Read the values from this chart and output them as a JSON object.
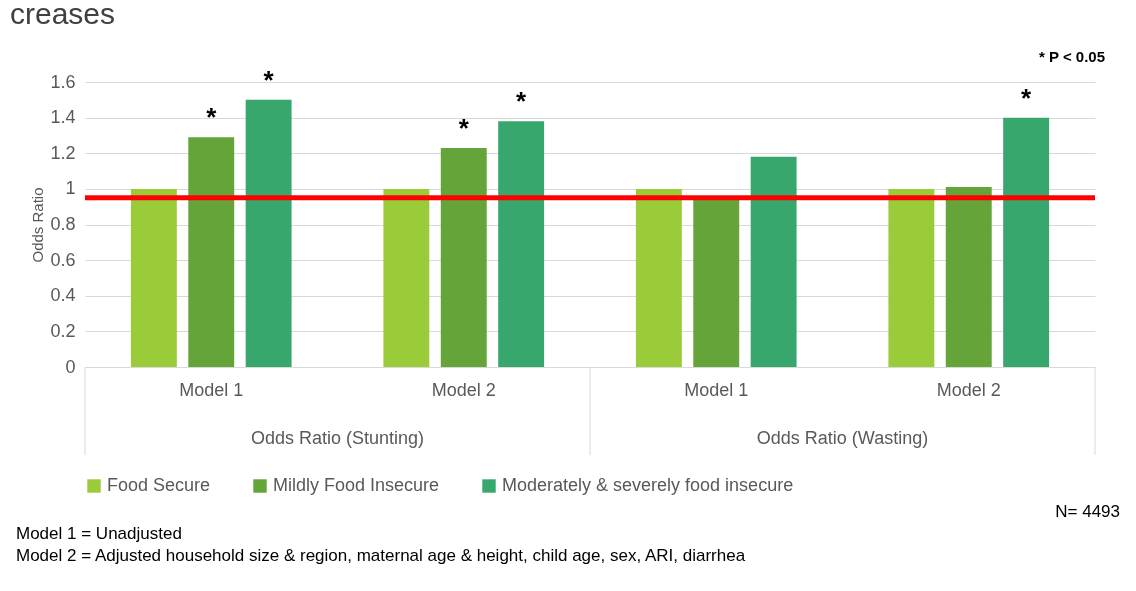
{
  "chart_data": {
    "type": "bar",
    "title": "creases",
    "ylabel": "Odds Ratio",
    "categories": [
      "Model 1",
      "Model 2",
      "Model 1",
      "Model 2"
    ],
    "series": [
      {
        "name": "Food Secure",
        "color": "#9acb39",
        "values": [
          1.0,
          1.0,
          1.0,
          1.0
        ],
        "value_labels": [
          null,
          null,
          null,
          null
        ]
      },
      {
        "name": "Mildly Food Insecure",
        "color": "#64a438",
        "values": [
          1.29,
          1.23,
          0.95,
          1.01
        ],
        "value_labels": [
          "*",
          "*",
          null,
          null
        ]
      },
      {
        "name": "Moderately & severely food insecure",
        "color": "#38a76d",
        "values": [
          1.5,
          1.38,
          1.18,
          1.4
        ],
        "value_labels": [
          "*",
          "*",
          null,
          "*"
        ]
      }
    ],
    "ylim": [
      0,
      1.6
    ],
    "yticks": [
      0,
      0.2,
      0.4,
      0.6,
      0.8,
      1,
      1.2,
      1.4,
      1.6
    ],
    "grid": "y",
    "legend": "bottom",
    "ref_lines": [
      {
        "axis": "y",
        "value": 0.95,
        "color": "#ff0000"
      }
    ],
    "annotations": [
      "Odds Ratio (Stunting)",
      "Odds Ratio (Wasting)",
      "* P < 0.05",
      "N= 4493",
      "Model 1 = Unadjusted",
      "Model 2 = Adjusted household size & region, maternal age & height, child age, sex, ARI, diarrhea"
    ]
  }
}
